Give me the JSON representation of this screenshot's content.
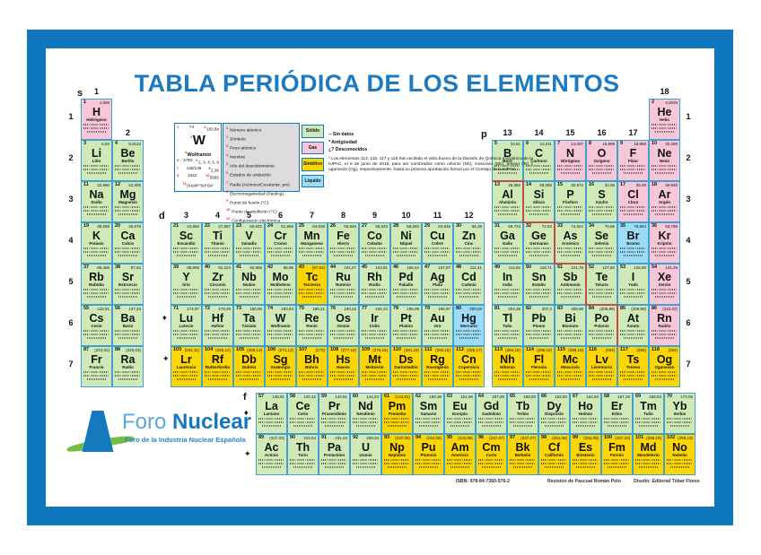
{
  "title": "TABLA PERIÓDICA DE LOS ELEMENTOS",
  "frame_color": "#1077bd",
  "state_colors": {
    "solid": "#cfeab6",
    "gas": "#f8c6d9",
    "synthetic": "#fcd505",
    "liquid": "#9cdcf6"
  },
  "legend": {
    "example": {
      "number": "74",
      "symbol": "W",
      "mass": "183,84",
      "name": "Wolframio",
      "year": "1783",
      "oxidation": "2, 3, 4, 5, 6",
      "radius": "135/146",
      "electronegativity": "2,36",
      "melting": "3422",
      "boiling": "5555",
      "configuration": "[Xe]4f¹⁴5d⁴6s²"
    },
    "items": [
      "Número atómico",
      "Símbolo",
      "Peso atómico",
      "Nombre",
      "Año del descubrimiento",
      "Estados de oxidación",
      "Radio (Atómico/Covalente, pm)",
      "Electronegatividad (Pauling)",
      "Punto de fusión (°C)",
      "Punto de ebullición (°C)",
      "Configuración electrónica"
    ],
    "states": [
      {
        "label": "Sólido",
        "key": "solid"
      },
      {
        "label": "Gas",
        "key": "gas"
      },
      {
        "label": "Sintético",
        "key": "synthetic"
      },
      {
        "label": "Líquido",
        "key": "liquid"
      }
    ],
    "notes": [
      "-- Sin datos",
      "*  Antigüedad",
      "¿?  Desconocidos"
    ],
    "footnote": "*  Los elementos 113, 115, 117 y 118 han recibido el visto bueno de la División de Química Inorgánica de la IUPAC, el 8 de junio de 2016, para ser nombrados como nihonio (Nh), moscovio (Mc), teneso (Ts) y oganesón (Og), respectivamente, hasta su próxima aprobación formal por el Consejo de la IUPAC"
  },
  "axis": {
    "groups": [
      "1",
      "2",
      "3",
      "4",
      "5",
      "6",
      "7",
      "8",
      "9",
      "10",
      "11",
      "12",
      "13",
      "14",
      "15",
      "16",
      "17",
      "18"
    ],
    "periods": [
      "1",
      "2",
      "3",
      "4",
      "5",
      "6",
      "7"
    ],
    "blocks": [
      {
        "label": "s"
      },
      {
        "label": "d"
      },
      {
        "label": "p"
      },
      {
        "label": "f"
      }
    ],
    "markers": [
      "♦",
      "✦",
      "♦",
      "✦"
    ]
  },
  "logo": {
    "foro": "Foro ",
    "nuclear": "Nuclear",
    "tagline": "Foro de la Industria Nuclear Española"
  },
  "footer": {
    "isbn": "ISBN: 978-84-7360-576-2",
    "revision": "Revisión de Pascual Román Polo",
    "design": "Diseño: Editorial Tébar Flores"
  },
  "elements": [
    {
      "n": 1,
      "s": "H",
      "nm": "Hidrógeno",
      "m": "1,008",
      "st": "gas",
      "p": 1,
      "g": 1
    },
    {
      "n": 2,
      "s": "He",
      "nm": "Helio",
      "m": "4,0026",
      "st": "gas",
      "p": 1,
      "g": 18
    },
    {
      "n": 3,
      "s": "Li",
      "nm": "Litio",
      "m": "6,94",
      "st": "solid",
      "p": 2,
      "g": 1
    },
    {
      "n": 4,
      "s": "Be",
      "nm": "Berilio",
      "m": "9,0122",
      "st": "solid",
      "p": 2,
      "g": 2
    },
    {
      "n": 5,
      "s": "B",
      "nm": "Boro",
      "m": "10,81",
      "st": "solid",
      "p": 2,
      "g": 13
    },
    {
      "n": 6,
      "s": "C",
      "nm": "Carbono",
      "m": "12,011",
      "st": "solid",
      "p": 2,
      "g": 14
    },
    {
      "n": 7,
      "s": "N",
      "nm": "Nitrógeno",
      "m": "14,007",
      "st": "gas",
      "p": 2,
      "g": 15
    },
    {
      "n": 8,
      "s": "O",
      "nm": "Oxígeno",
      "m": "15,999",
      "st": "gas",
      "p": 2,
      "g": 16
    },
    {
      "n": 9,
      "s": "F",
      "nm": "Flúor",
      "m": "18,998",
      "st": "gas",
      "p": 2,
      "g": 17
    },
    {
      "n": 10,
      "s": "Ne",
      "nm": "Neón",
      "m": "20,180",
      "st": "gas",
      "p": 2,
      "g": 18
    },
    {
      "n": 11,
      "s": "Na",
      "nm": "Sodio",
      "m": "22,990",
      "st": "solid",
      "p": 3,
      "g": 1
    },
    {
      "n": 12,
      "s": "Mg",
      "nm": "Magnesio",
      "m": "24,305",
      "st": "solid",
      "p": 3,
      "g": 2
    },
    {
      "n": 13,
      "s": "Al",
      "nm": "Aluminio",
      "m": "26,982",
      "st": "solid",
      "p": 3,
      "g": 13
    },
    {
      "n": 14,
      "s": "Si",
      "nm": "Silicio",
      "m": "28,085",
      "st": "solid",
      "p": 3,
      "g": 14
    },
    {
      "n": 15,
      "s": "P",
      "nm": "Fósforo",
      "m": "30,974",
      "st": "solid",
      "p": 3,
      "g": 15
    },
    {
      "n": 16,
      "s": "S",
      "nm": "Azufre",
      "m": "32,06",
      "st": "solid",
      "p": 3,
      "g": 16
    },
    {
      "n": 17,
      "s": "Cl",
      "nm": "Cloro",
      "m": "35,45",
      "st": "gas",
      "p": 3,
      "g": 17
    },
    {
      "n": 18,
      "s": "Ar",
      "nm": "Argón",
      "m": "39,948",
      "st": "gas",
      "p": 3,
      "g": 18
    },
    {
      "n": 19,
      "s": "K",
      "nm": "Potasio",
      "m": "39,098",
      "st": "solid",
      "p": 4,
      "g": 1
    },
    {
      "n": 20,
      "s": "Ca",
      "nm": "Calcio",
      "m": "40,078",
      "st": "solid",
      "p": 4,
      "g": 2
    },
    {
      "n": 21,
      "s": "Sc",
      "nm": "Escandio",
      "m": "44,956",
      "st": "solid",
      "p": 4,
      "g": 3
    },
    {
      "n": 22,
      "s": "Ti",
      "nm": "Titanio",
      "m": "47,867",
      "st": "solid",
      "p": 4,
      "g": 4
    },
    {
      "n": 23,
      "s": "V",
      "nm": "Vanadio",
      "m": "50,942",
      "st": "solid",
      "p": 4,
      "g": 5
    },
    {
      "n": 24,
      "s": "Cr",
      "nm": "Cromo",
      "m": "51,996",
      "st": "solid",
      "p": 4,
      "g": 6
    },
    {
      "n": 25,
      "s": "Mn",
      "nm": "Manganeso",
      "m": "54,938",
      "st": "solid",
      "p": 4,
      "g": 7
    },
    {
      "n": 26,
      "s": "Fe",
      "nm": "Hierro",
      "m": "55,845",
      "st": "solid",
      "p": 4,
      "g": 8
    },
    {
      "n": 27,
      "s": "Co",
      "nm": "Cobalto",
      "m": "58,933",
      "st": "solid",
      "p": 4,
      "g": 9
    },
    {
      "n": 28,
      "s": "Ni",
      "nm": "Níquel",
      "m": "58,693",
      "st": "solid",
      "p": 4,
      "g": 10
    },
    {
      "n": 29,
      "s": "Cu",
      "nm": "Cobre",
      "m": "63,546",
      "st": "solid",
      "p": 4,
      "g": 11
    },
    {
      "n": 30,
      "s": "Zn",
      "nm": "Cinc",
      "m": "65,38",
      "st": "solid",
      "p": 4,
      "g": 12
    },
    {
      "n": 31,
      "s": "Ga",
      "nm": "Galio",
      "m": "69,723",
      "st": "solid",
      "p": 4,
      "g": 13
    },
    {
      "n": 32,
      "s": "Ge",
      "nm": "Germanio",
      "m": "72,63",
      "st": "solid",
      "p": 4,
      "g": 14
    },
    {
      "n": 33,
      "s": "As",
      "nm": "Arsénico",
      "m": "74,922",
      "st": "solid",
      "p": 4,
      "g": 15
    },
    {
      "n": 34,
      "s": "Se",
      "nm": "Selenio",
      "m": "78,96",
      "st": "solid",
      "p": 4,
      "g": 16
    },
    {
      "n": 35,
      "s": "Br",
      "nm": "Bromo",
      "m": "79,904",
      "st": "liquid",
      "p": 4,
      "g": 17
    },
    {
      "n": 36,
      "s": "Kr",
      "nm": "Kriptón",
      "m": "83,798",
      "st": "gas",
      "p": 4,
      "g": 18
    },
    {
      "n": 37,
      "s": "Rb",
      "nm": "Rubidio",
      "m": "85,468",
      "st": "solid",
      "p": 5,
      "g": 1
    },
    {
      "n": 38,
      "s": "Sr",
      "nm": "Estroncio",
      "m": "87,62",
      "st": "solid",
      "p": 5,
      "g": 2
    },
    {
      "n": 39,
      "s": "Y",
      "nm": "Itrio",
      "m": "88,906",
      "st": "solid",
      "p": 5,
      "g": 3
    },
    {
      "n": 40,
      "s": "Zr",
      "nm": "Circonio",
      "m": "91,224",
      "st": "solid",
      "p": 5,
      "g": 4
    },
    {
      "n": 41,
      "s": "Nb",
      "nm": "Niobio",
      "m": "92,906",
      "st": "solid",
      "p": 5,
      "g": 5
    },
    {
      "n": 42,
      "s": "Mo",
      "nm": "Molibdeno",
      "m": "95,96",
      "st": "solid",
      "p": 5,
      "g": 6
    },
    {
      "n": 43,
      "s": "Tc",
      "nm": "Tecnecio",
      "m": "(97,91)",
      "st": "synthetic",
      "p": 5,
      "g": 7
    },
    {
      "n": 44,
      "s": "Ru",
      "nm": "Rutenio",
      "m": "101,07",
      "st": "solid",
      "p": 5,
      "g": 8
    },
    {
      "n": 45,
      "s": "Rh",
      "nm": "Rodio",
      "m": "102,91",
      "st": "solid",
      "p": 5,
      "g": 9
    },
    {
      "n": 46,
      "s": "Pd",
      "nm": "Paladio",
      "m": "106,42",
      "st": "solid",
      "p": 5,
      "g": 10
    },
    {
      "n": 47,
      "s": "Ag",
      "nm": "Plata",
      "m": "107,87",
      "st": "solid",
      "p": 5,
      "g": 11
    },
    {
      "n": 48,
      "s": "Cd",
      "nm": "Cadmio",
      "m": "112,41",
      "st": "solid",
      "p": 5,
      "g": 12
    },
    {
      "n": 49,
      "s": "In",
      "nm": "Indio",
      "m": "114,82",
      "st": "solid",
      "p": 5,
      "g": 13
    },
    {
      "n": 50,
      "s": "Sn",
      "nm": "Estaño",
      "m": "118,71",
      "st": "solid",
      "p": 5,
      "g": 14
    },
    {
      "n": 51,
      "s": "Sb",
      "nm": "Antimonio",
      "m": "121,76",
      "st": "solid",
      "p": 5,
      "g": 15
    },
    {
      "n": 52,
      "s": "Te",
      "nm": "Telurio",
      "m": "127,60",
      "st": "solid",
      "p": 5,
      "g": 16
    },
    {
      "n": 53,
      "s": "I",
      "nm": "Yodo",
      "m": "126,90",
      "st": "solid",
      "p": 5,
      "g": 17
    },
    {
      "n": 54,
      "s": "Xe",
      "nm": "Xenón",
      "m": "131,29",
      "st": "gas",
      "p": 5,
      "g": 18
    },
    {
      "n": 55,
      "s": "Cs",
      "nm": "Cesio",
      "m": "132,91",
      "st": "solid",
      "p": 6,
      "g": 1
    },
    {
      "n": 56,
      "s": "Ba",
      "nm": "Bario",
      "m": "137,33",
      "st": "solid",
      "p": 6,
      "g": 2
    },
    {
      "n": 71,
      "s": "Lu",
      "nm": "Lutecio",
      "m": "174,97",
      "st": "solid",
      "p": 6,
      "g": 3
    },
    {
      "n": 72,
      "s": "Hf",
      "nm": "Hafnio",
      "m": "178,49",
      "st": "solid",
      "p": 6,
      "g": 4
    },
    {
      "n": 73,
      "s": "Ta",
      "nm": "Tántalo",
      "m": "180,95",
      "st": "solid",
      "p": 6,
      "g": 5
    },
    {
      "n": 74,
      "s": "W",
      "nm": "Wolframio",
      "m": "183,84",
      "st": "solid",
      "p": 6,
      "g": 6
    },
    {
      "n": 75,
      "s": "Re",
      "nm": "Renio",
      "m": "186,21",
      "st": "solid",
      "p": 6,
      "g": 7
    },
    {
      "n": 76,
      "s": "Os",
      "nm": "Osmio",
      "m": "190,23",
      "st": "solid",
      "p": 6,
      "g": 8
    },
    {
      "n": 77,
      "s": "Ir",
      "nm": "Iridio",
      "m": "192,22",
      "st": "solid",
      "p": 6,
      "g": 9
    },
    {
      "n": 78,
      "s": "Pt",
      "nm": "Platino",
      "m": "195,08",
      "st": "solid",
      "p": 6,
      "g": 10
    },
    {
      "n": 79,
      "s": "Au",
      "nm": "Oro",
      "m": "196,97",
      "st": "solid",
      "p": 6,
      "g": 11
    },
    {
      "n": 80,
      "s": "Hg",
      "nm": "Mercurio",
      "m": "200,59",
      "st": "liquid",
      "p": 6,
      "g": 12
    },
    {
      "n": 81,
      "s": "Tl",
      "nm": "Talio",
      "m": "204,38",
      "st": "solid",
      "p": 6,
      "g": 13
    },
    {
      "n": 82,
      "s": "Pb",
      "nm": "Plomo",
      "m": "207,2",
      "st": "solid",
      "p": 6,
      "g": 14
    },
    {
      "n": 83,
      "s": "Bi",
      "nm": "Bismuto",
      "m": "208,98",
      "st": "solid",
      "p": 6,
      "g": 15
    },
    {
      "n": 84,
      "s": "Po",
      "nm": "Polonio",
      "m": "(208,98)",
      "st": "solid",
      "p": 6,
      "g": 16
    },
    {
      "n": 85,
      "s": "At",
      "nm": "Ástato",
      "m": "(209,99)",
      "st": "solid",
      "p": 6,
      "g": 17
    },
    {
      "n": 86,
      "s": "Rn",
      "nm": "Radón",
      "m": "(222,02)",
      "st": "gas",
      "p": 6,
      "g": 18
    },
    {
      "n": 87,
      "s": "Fr",
      "nm": "Francio",
      "m": "(223,02)",
      "st": "solid",
      "p": 7,
      "g": 1
    },
    {
      "n": 88,
      "s": "Ra",
      "nm": "Radio",
      "m": "(226,03)",
      "st": "solid",
      "p": 7,
      "g": 2
    },
    {
      "n": 103,
      "s": "Lr",
      "nm": "Laurencio",
      "m": "(262,11)",
      "st": "synthetic",
      "p": 7,
      "g": 3
    },
    {
      "n": 104,
      "s": "Rf",
      "nm": "Rutherfordio",
      "m": "(265,12)",
      "st": "synthetic",
      "p": 7,
      "g": 4
    },
    {
      "n": 105,
      "s": "Db",
      "nm": "Dubnio",
      "m": "(268,13)",
      "st": "synthetic",
      "p": 7,
      "g": 5
    },
    {
      "n": 106,
      "s": "Sg",
      "nm": "Seaborgio",
      "m": "(271,13)",
      "st": "synthetic",
      "p": 7,
      "g": 6
    },
    {
      "n": 107,
      "s": "Bh",
      "nm": "Bohrio",
      "m": "(270)",
      "st": "synthetic",
      "p": 7,
      "g": 7
    },
    {
      "n": 108,
      "s": "Hs",
      "nm": "Hassio",
      "m": "(277,15)",
      "st": "synthetic",
      "p": 7,
      "g": 8
    },
    {
      "n": 109,
      "s": "Mt",
      "nm": "Meitnerio",
      "m": "(276,15)",
      "st": "synthetic",
      "p": 7,
      "g": 9
    },
    {
      "n": 110,
      "s": "Ds",
      "nm": "Darmstadtio",
      "m": "(281,16)",
      "st": "synthetic",
      "p": 7,
      "g": 10
    },
    {
      "n": 111,
      "s": "Rg",
      "nm": "Roentgenio",
      "m": "(280,16)",
      "st": "synthetic",
      "p": 7,
      "g": 11
    },
    {
      "n": 112,
      "s": "Cn",
      "nm": "Copernicio",
      "m": "(285,17)",
      "st": "synthetic",
      "p": 7,
      "g": 12
    },
    {
      "n": 113,
      "s": "Nh",
      "nm": "Nihonio",
      "m": "(284,18)",
      "st": "synthetic",
      "p": 7,
      "g": 13
    },
    {
      "n": 114,
      "s": "Fl",
      "nm": "Flerovio",
      "m": "(289,19)",
      "st": "synthetic",
      "p": 7,
      "g": 14
    },
    {
      "n": 115,
      "s": "Mc",
      "nm": "Moscovio",
      "m": "(288,19)",
      "st": "synthetic",
      "p": 7,
      "g": 15
    },
    {
      "n": 116,
      "s": "Lv",
      "nm": "Livermorio",
      "m": "(293)",
      "st": "synthetic",
      "p": 7,
      "g": 16
    },
    {
      "n": 117,
      "s": "Ts",
      "nm": "Teneso",
      "m": "(294)",
      "st": "synthetic",
      "p": 7,
      "g": 17
    },
    {
      "n": 118,
      "s": "Og",
      "nm": "Oganesón",
      "m": "(294)",
      "st": "synthetic",
      "p": 7,
      "g": 18
    },
    {
      "n": 57,
      "s": "La",
      "nm": "Lantano",
      "m": "138,91",
      "st": "solid",
      "fr": 0,
      "fc": 0
    },
    {
      "n": 58,
      "s": "Ce",
      "nm": "Cerio",
      "m": "140,12",
      "st": "solid",
      "fr": 0,
      "fc": 1
    },
    {
      "n": 59,
      "s": "Pr",
      "nm": "Praseodimio",
      "m": "140,91",
      "st": "solid",
      "fr": 0,
      "fc": 2
    },
    {
      "n": 60,
      "s": "Nd",
      "nm": "Neodimio",
      "m": "144,24",
      "st": "solid",
      "fr": 0,
      "fc": 3
    },
    {
      "n": 61,
      "s": "Pm",
      "nm": "Prometio",
      "m": "(144,91)",
      "st": "synthetic",
      "fr": 0,
      "fc": 4
    },
    {
      "n": 62,
      "s": "Sm",
      "nm": "Samario",
      "m": "150,36",
      "st": "solid",
      "fr": 0,
      "fc": 5
    },
    {
      "n": 63,
      "s": "Eu",
      "nm": "Europio",
      "m": "151,96",
      "st": "solid",
      "fr": 0,
      "fc": 6
    },
    {
      "n": 64,
      "s": "Gd",
      "nm": "Gadolinio",
      "m": "157,25",
      "st": "solid",
      "fr": 0,
      "fc": 7
    },
    {
      "n": 65,
      "s": "Tb",
      "nm": "Terbio",
      "m": "158,93",
      "st": "solid",
      "fr": 0,
      "fc": 8
    },
    {
      "n": 66,
      "s": "Dy",
      "nm": "Disprosio",
      "m": "162,50",
      "st": "solid",
      "fr": 0,
      "fc": 9
    },
    {
      "n": 67,
      "s": "Ho",
      "nm": "Holmio",
      "m": "164,93",
      "st": "solid",
      "fr": 0,
      "fc": 10
    },
    {
      "n": 68,
      "s": "Er",
      "nm": "Erbio",
      "m": "167,26",
      "st": "solid",
      "fr": 0,
      "fc": 11
    },
    {
      "n": 69,
      "s": "Tm",
      "nm": "Tulio",
      "m": "168,93",
      "st": "solid",
      "fr": 0,
      "fc": 12
    },
    {
      "n": 70,
      "s": "Yb",
      "nm": "Iterbio",
      "m": "173,05",
      "st": "solid",
      "fr": 0,
      "fc": 13
    },
    {
      "n": 89,
      "s": "Ac",
      "nm": "Actinio",
      "m": "(227,03)",
      "st": "solid",
      "fr": 1,
      "fc": 0
    },
    {
      "n": 90,
      "s": "Th",
      "nm": "Torio",
      "m": "232,04",
      "st": "solid",
      "fr": 1,
      "fc": 1
    },
    {
      "n": 91,
      "s": "Pa",
      "nm": "Protactinio",
      "m": "231,04",
      "st": "solid",
      "fr": 1,
      "fc": 2
    },
    {
      "n": 92,
      "s": "U",
      "nm": "Uranio",
      "m": "238,03",
      "st": "solid",
      "fr": 1,
      "fc": 3
    },
    {
      "n": 93,
      "s": "Np",
      "nm": "Neptunio",
      "m": "(237,05)",
      "st": "synthetic",
      "fr": 1,
      "fc": 4
    },
    {
      "n": 94,
      "s": "Pu",
      "nm": "Plutonio",
      "m": "(244,06)",
      "st": "synthetic",
      "fr": 1,
      "fc": 5
    },
    {
      "n": 95,
      "s": "Am",
      "nm": "Americio",
      "m": "(243,06)",
      "st": "synthetic",
      "fr": 1,
      "fc": 6
    },
    {
      "n": 96,
      "s": "Cm",
      "nm": "Curio",
      "m": "(247,07)",
      "st": "synthetic",
      "fr": 1,
      "fc": 7
    },
    {
      "n": 97,
      "s": "Bk",
      "nm": "Berkelio",
      "m": "(247,07)",
      "st": "synthetic",
      "fr": 1,
      "fc": 8
    },
    {
      "n": 98,
      "s": "Cf",
      "nm": "Californio",
      "m": "(251,08)",
      "st": "synthetic",
      "fr": 1,
      "fc": 9
    },
    {
      "n": 99,
      "s": "Es",
      "nm": "Einstenio",
      "m": "(252,08)",
      "st": "synthetic",
      "fr": 1,
      "fc": 10
    },
    {
      "n": 100,
      "s": "Fm",
      "nm": "Fermio",
      "m": "(257,10)",
      "st": "synthetic",
      "fr": 1,
      "fc": 11
    },
    {
      "n": 101,
      "s": "Md",
      "nm": "Mendelevio",
      "m": "(258,10)",
      "st": "synthetic",
      "fr": 1,
      "fc": 12
    },
    {
      "n": 102,
      "s": "No",
      "nm": "Nobelio",
      "m": "(259,10)",
      "st": "synthetic",
      "fr": 1,
      "fc": 13
    }
  ]
}
